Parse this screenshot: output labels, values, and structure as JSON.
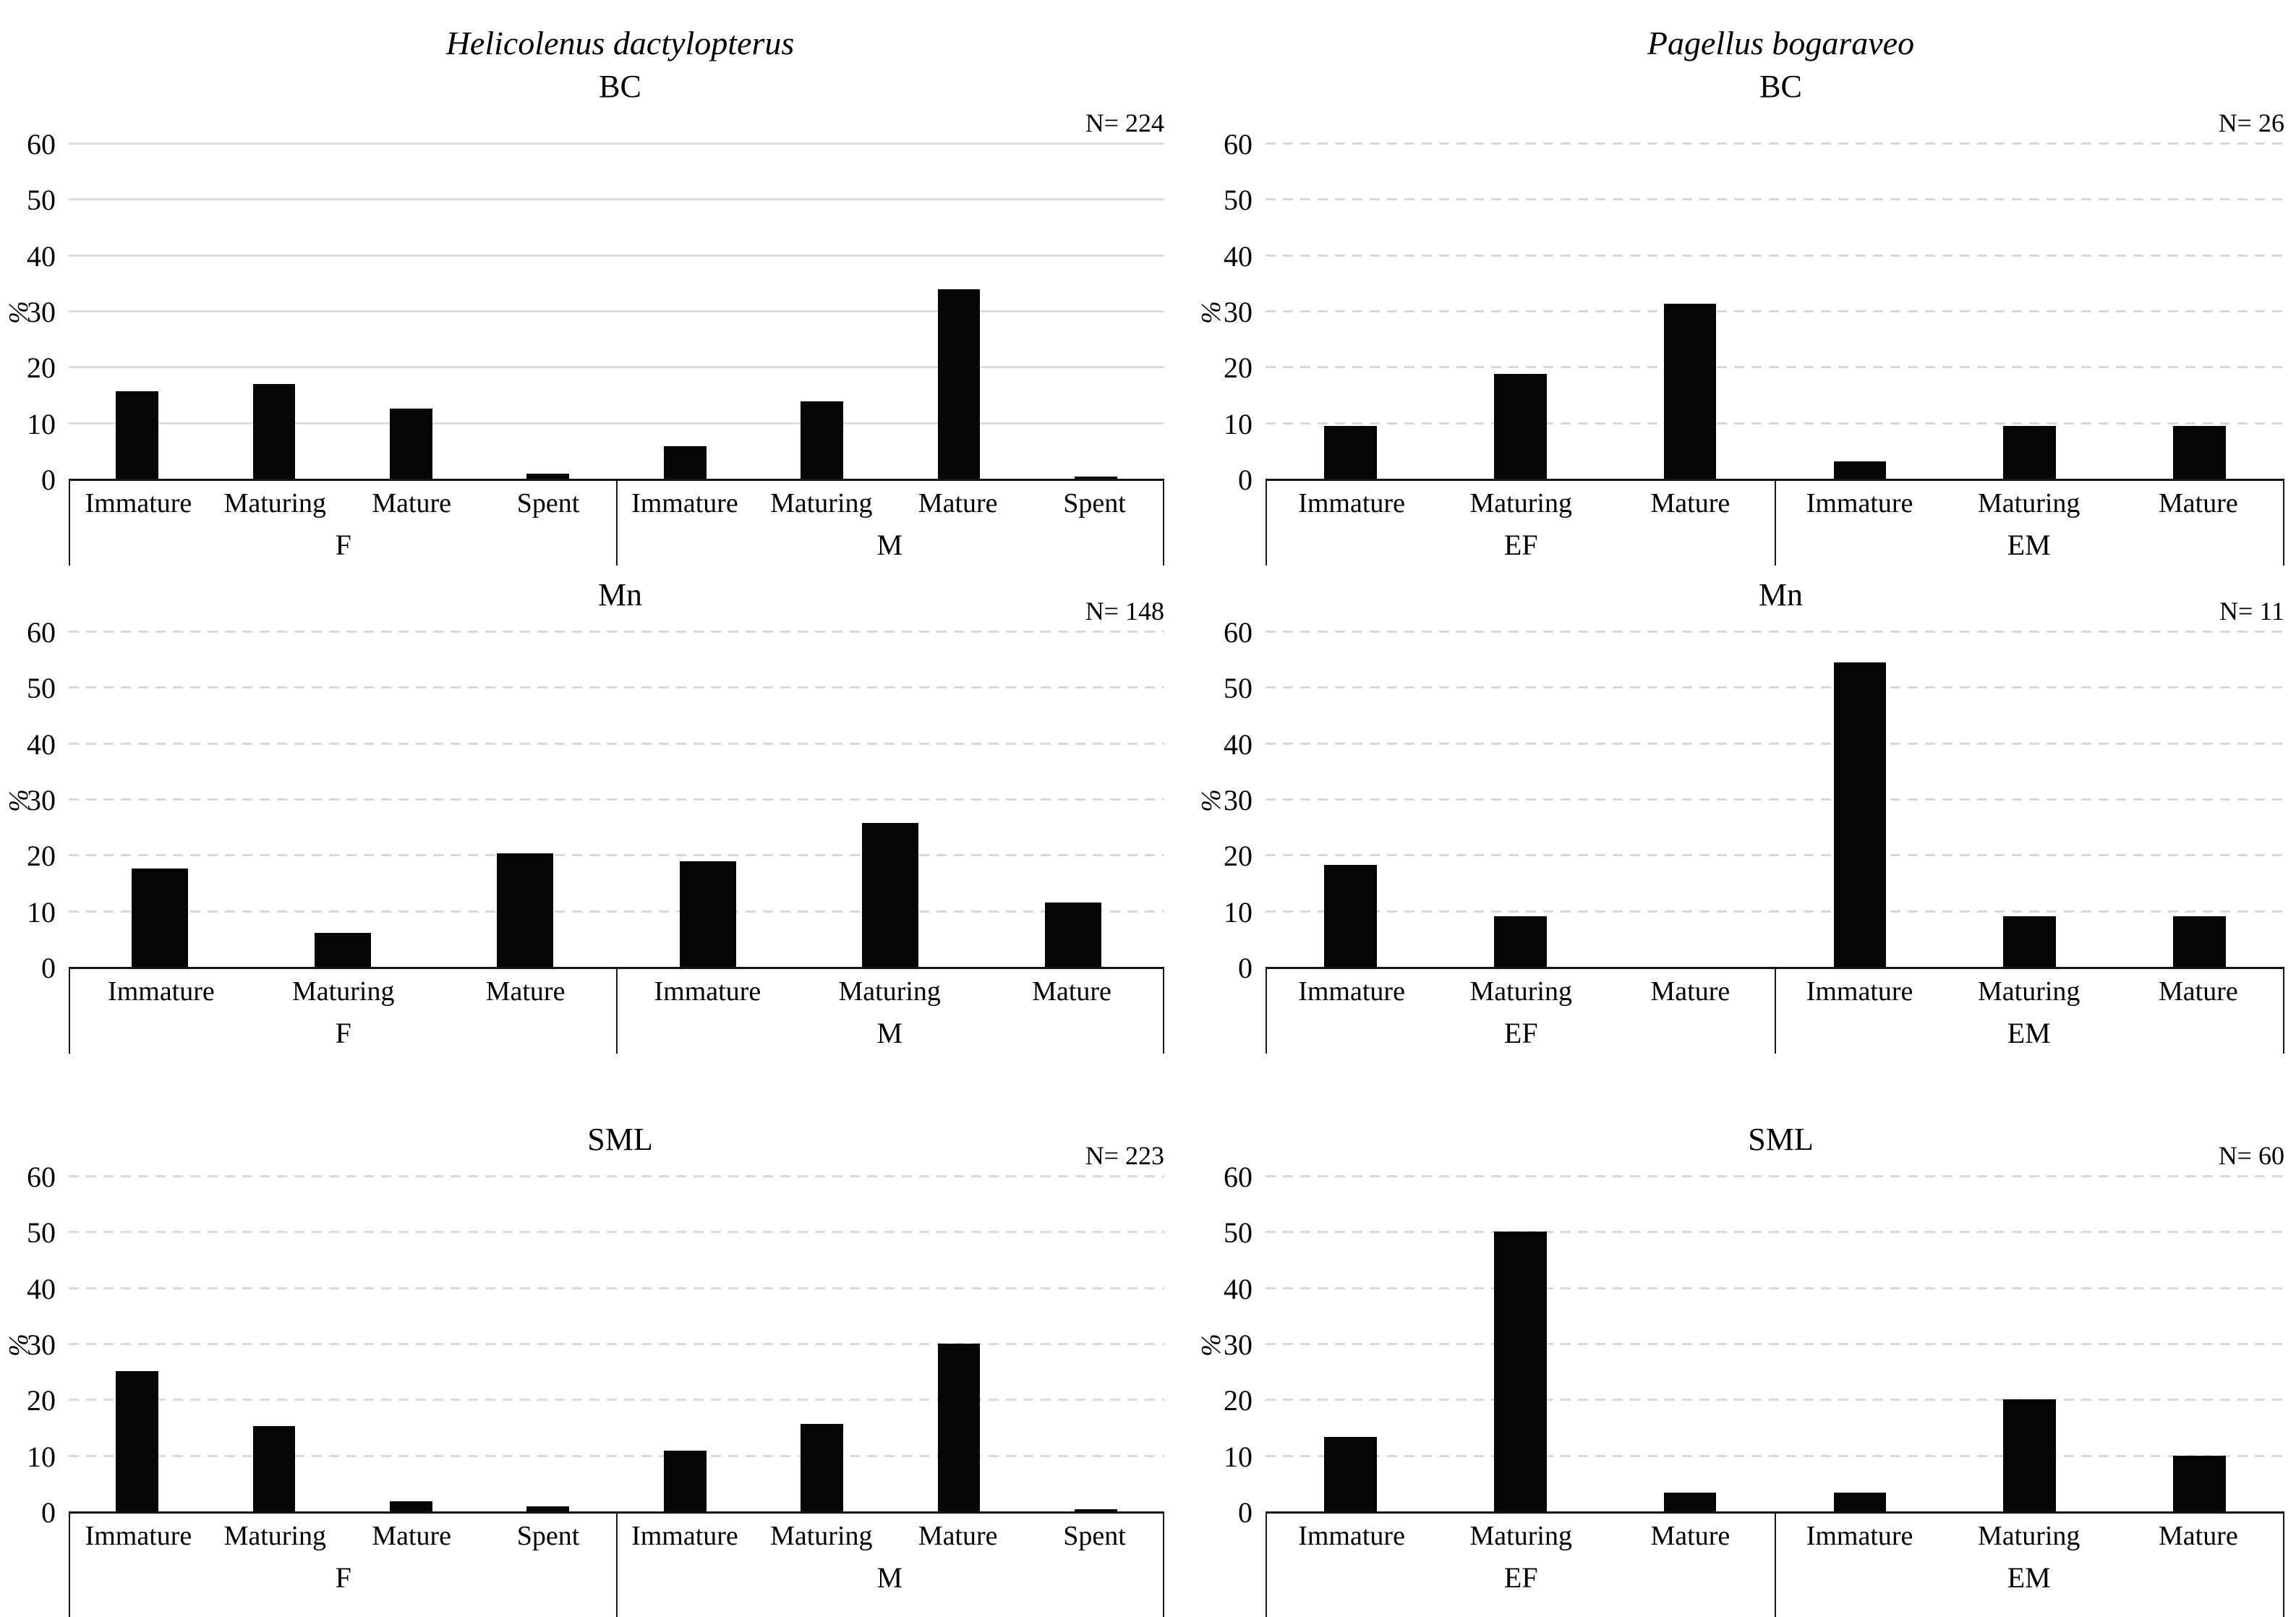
{
  "axis": {
    "ylabel": "%",
    "y_ticks": [
      0,
      10,
      20,
      30,
      40,
      50,
      60
    ],
    "ymax": 60,
    "grid": "horizontal"
  },
  "colors": {
    "bar": "#060606",
    "gridline": "#d9d9d9",
    "axis_line": "#141414",
    "box_line": "#1a1a1a",
    "text": "#000000",
    "background": "#ffffff"
  },
  "chart_data": [
    {
      "id": "helicolenus-bc",
      "type": "bar",
      "species": "Helicolenus dactylopterus",
      "title": "BC",
      "n_label": "N= 224",
      "ylabel": "%",
      "ylim": [
        0,
        60
      ],
      "grid_style": "solid",
      "legend": "none",
      "groups": [
        {
          "label": "F",
          "categories": [
            "Immature",
            "Maturing",
            "Mature",
            "Spent"
          ],
          "values": [
            15.6,
            17.0,
            12.5,
            0.9
          ]
        },
        {
          "label": "M",
          "categories": [
            "Immature",
            "Maturing",
            "Mature",
            "Spent"
          ],
          "values": [
            5.8,
            13.8,
            33.9,
            0.4
          ]
        }
      ]
    },
    {
      "id": "pagellus-bc",
      "type": "bar",
      "species": "Pagellus bogaraveo",
      "title": "BC",
      "n_label": "N= 26",
      "ylabel": "%",
      "ylim": [
        0,
        60
      ],
      "grid_style": "dashed",
      "legend": "none",
      "groups": [
        {
          "label": "EF",
          "categories": [
            "Immature",
            "Maturing",
            "Mature"
          ],
          "values": [
            9.4,
            18.8,
            31.3
          ]
        },
        {
          "label": "EM",
          "categories": [
            "Immature",
            "Maturing",
            "Mature"
          ],
          "values": [
            3.1,
            9.4,
            9.4
          ]
        }
      ]
    },
    {
      "id": "helicolenus-mn",
      "type": "bar",
      "title": "Mn",
      "n_label": "N= 148",
      "ylabel": "%",
      "ylim": [
        0,
        60
      ],
      "grid_style": "dashed",
      "legend": "none",
      "groups": [
        {
          "label": "F",
          "categories": [
            "Immature",
            "Maturing",
            "Mature"
          ],
          "values": [
            17.6,
            6.1,
            20.3
          ]
        },
        {
          "label": "M",
          "categories": [
            "Immature",
            "Maturing",
            "Mature"
          ],
          "values": [
            18.9,
            25.7,
            11.5
          ]
        }
      ]
    },
    {
      "id": "pagellus-mn",
      "type": "bar",
      "title": "Mn",
      "n_label": "N= 11",
      "ylabel": "%",
      "ylim": [
        0,
        60
      ],
      "grid_style": "dashed",
      "legend": "none",
      "groups": [
        {
          "label": "EF",
          "categories": [
            "Immature",
            "Maturing",
            "Mature"
          ],
          "values": [
            18.2,
            9.1,
            0
          ]
        },
        {
          "label": "EM",
          "categories": [
            "Immature",
            "Maturing",
            "Mature"
          ],
          "values": [
            54.5,
            9.1,
            9.1
          ]
        }
      ]
    },
    {
      "id": "helicolenus-sml",
      "type": "bar",
      "title": "SML",
      "n_label": "N= 223",
      "ylabel": "%",
      "ylim": [
        0,
        60
      ],
      "grid_style": "dashed",
      "legend": "none",
      "groups": [
        {
          "label": "F",
          "categories": [
            "Immature",
            "Maturing",
            "Mature",
            "Spent"
          ],
          "values": [
            25.1,
            15.2,
            1.8,
            0.9
          ]
        },
        {
          "label": "M",
          "categories": [
            "Immature",
            "Maturing",
            "Mature",
            "Spent"
          ],
          "values": [
            10.8,
            15.7,
            30.0,
            0.4
          ]
        }
      ]
    },
    {
      "id": "pagellus-sml",
      "type": "bar",
      "title": "SML",
      "n_label": "N= 60",
      "ylabel": "%",
      "ylim": [
        0,
        60
      ],
      "grid_style": "dashed",
      "legend": "none",
      "groups": [
        {
          "label": "EF",
          "categories": [
            "Immature",
            "Maturing",
            "Mature"
          ],
          "values": [
            13.3,
            50.0,
            3.3
          ]
        },
        {
          "label": "EM",
          "categories": [
            "Immature",
            "Maturing",
            "Mature"
          ],
          "values": [
            3.3,
            20.0,
            10.0
          ]
        }
      ]
    }
  ]
}
